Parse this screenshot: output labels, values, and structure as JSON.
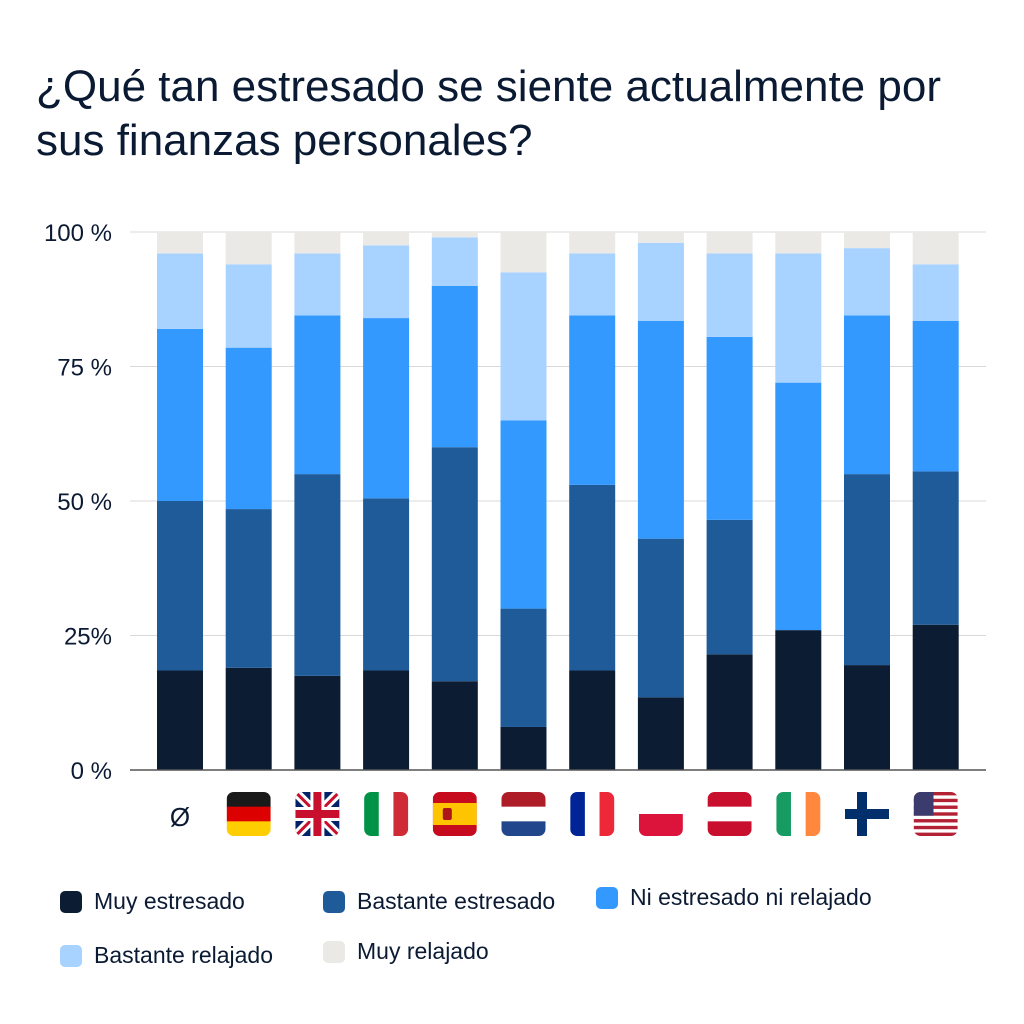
{
  "title": "¿Qué tan estresado se siente actualmente por sus finanzas personales?",
  "colors": {
    "muy_estresado": "#0b1c33",
    "bastante_estresado": "#1f5b99",
    "ni_ni": "#3399ff",
    "bastante_relajado": "#a8d2ff",
    "muy_relajado": "#ebe9e6",
    "grid": "#d9d9d9",
    "axis": "#555555",
    "text": "#0b1a33"
  },
  "chart_data": {
    "type": "bar",
    "stacked": true,
    "categories": [
      "Ø",
      "Germany",
      "United Kingdom",
      "Italy",
      "Spain",
      "Netherlands",
      "France",
      "Poland",
      "Austria",
      "Ireland",
      "Finland",
      "United States"
    ],
    "category_labels": [
      "Ø",
      "",
      "",
      "",
      "",
      "",
      "",
      "",
      "",
      "",
      "",
      ""
    ],
    "category_icons": [
      "average-symbol",
      "flag-germany",
      "flag-united-kingdom",
      "flag-italy",
      "flag-spain",
      "flag-netherlands",
      "flag-france",
      "flag-poland",
      "flag-austria",
      "flag-ireland",
      "flag-finland",
      "flag-united-states"
    ],
    "ylim": [
      0,
      100
    ],
    "yticks": [
      0,
      25,
      50,
      75,
      100
    ],
    "ytick_labels": [
      "0 %",
      "25%",
      "50 %",
      "75 %",
      "100 %"
    ],
    "grid": true,
    "legend_position": "bottom",
    "series": [
      {
        "name": "Muy estresado",
        "color_key": "muy_estresado",
        "values": [
          18.5,
          19,
          17.5,
          18.5,
          16.5,
          8,
          18.5,
          13.5,
          21.5,
          26,
          19.5,
          27
        ]
      },
      {
        "name": "Bastante estresado",
        "color_key": "bastante_estresado",
        "values": [
          31.5,
          29.5,
          37.5,
          32,
          43.5,
          22,
          34.5,
          29.5,
          25,
          0,
          35.5,
          28.5
        ]
      },
      {
        "name": "Ni estresado ni relajado",
        "color_key": "ni_ni",
        "values": [
          32,
          30,
          29.5,
          33.5,
          30,
          35,
          31.5,
          40.5,
          34,
          46,
          29.5,
          28
        ]
      },
      {
        "name": "Bastante relajado",
        "color_key": "bastante_relajado",
        "values": [
          14,
          15.5,
          11.5,
          13.5,
          9,
          27.5,
          11.5,
          14.5,
          15.5,
          24,
          12.5,
          10.5
        ]
      },
      {
        "name": "Muy relajado",
        "color_key": "muy_relajado",
        "values": [
          4,
          6,
          4,
          2.5,
          1,
          7.5,
          4,
          2,
          4,
          4,
          3,
          6
        ]
      }
    ]
  },
  "legend": [
    {
      "label": "Muy estresado",
      "color_key": "muy_estresado"
    },
    {
      "label": "Bastante estresado",
      "color_key": "bastante_estresado"
    },
    {
      "label": "Ni estresado ni relajado",
      "color_key": "ni_ni"
    },
    {
      "label": "Bastante relajado",
      "color_key": "bastante_relajado"
    },
    {
      "label": "Muy relajado",
      "color_key": "muy_relajado"
    }
  ]
}
